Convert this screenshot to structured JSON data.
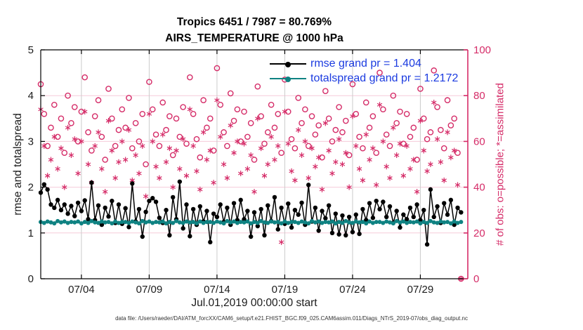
{
  "figure": {
    "title_line1": "Tropics 6451 / 7987 = 80.769%",
    "title_line2": "AIRS_TEMPERATURE @ 1000 hPa",
    "xlabel": "Jul.01,2019 00:00:00 start",
    "ylabel_left": "rmse and totalspread",
    "ylabel_right": "# of obs: o=possible; *=assimilated",
    "data_file_note": "data file: /Users/raeder/DAI/ATM_forcXX/CAM6_setup/f.e21.FHIST_BGC.f09_025.CAM6assim.011/Diags_NTrS_2019-07/obs_diag_output.nc"
  },
  "legend": {
    "text_color": "#1b3be0",
    "items": [
      {
        "label": "rmse grand pr = 1.404",
        "color": "#000000"
      },
      {
        "label": "totalspread grand pr = 1.2172",
        "color": "#0f8282"
      }
    ]
  },
  "colors": {
    "obs_pink": "#d52c68",
    "rmse_black": "#000000",
    "totalspread_teal": "#0f8282",
    "grid_vertical": "#cccccc",
    "grid_horizontal": "#f6cbd9",
    "axis_black": "#000000",
    "tick_label": "#1c1c1c",
    "legend_text_blue": "#1b3be0"
  },
  "chart_data": {
    "type": "line+scatter",
    "title": "Tropics 6451 / 7987 = 80.769% | AIRS_TEMPERATURE @ 1000 hPa",
    "x_unit": "days since Jul.01,2019 00:00:00",
    "x_start_day": 0,
    "x_step_days": 0.25,
    "x_max_day": 31.5,
    "x_ticks": [
      {
        "day": 3,
        "label": "07/04"
      },
      {
        "day": 8,
        "label": "07/09"
      },
      {
        "day": 13,
        "label": "07/14"
      },
      {
        "day": 18,
        "label": "07/19"
      },
      {
        "day": 23,
        "label": "07/24"
      },
      {
        "day": 28,
        "label": "07/29"
      }
    ],
    "y_left": {
      "label": "rmse and totalspread",
      "min": 0,
      "max": 5,
      "ticks": [
        0,
        1,
        2,
        3,
        4,
        5
      ]
    },
    "y_right": {
      "label": "# of obs: o=possible; *=assimilated",
      "min": 0,
      "max": 100,
      "ticks": [
        0,
        20,
        40,
        60,
        80,
        100
      ]
    },
    "grid": true,
    "legend_position": "top-center-inside",
    "series": [
      {
        "name": "rmse",
        "type": "line",
        "axis": "left",
        "marker": "filled-circle",
        "color": "#000000",
        "grand_mean": 1.404,
        "values": [
          1.88,
          2.06,
          1.95,
          1.62,
          1.55,
          1.72,
          1.5,
          1.62,
          1.42,
          1.59,
          1.37,
          1.66,
          1.48,
          1.71,
          1.3,
          2.1,
          1.28,
          1.6,
          1.18,
          1.55,
          1.36,
          1.7,
          1.22,
          1.62,
          1.2,
          1.54,
          1.13,
          2.08,
          1.25,
          1.52,
          0.92,
          1.46,
          1.7,
          1.76,
          1.68,
          1.33,
          1.22,
          1.5,
          0.95,
          1.78,
          1.3,
          2.12,
          1.1,
          1.62,
          0.93,
          1.52,
          1.18,
          1.58,
          1.25,
          1.48,
          0.8,
          1.42,
          1.35,
          1.62,
          1.24,
          1.55,
          1.18,
          1.65,
          1.28,
          1.72,
          1.3,
          1.48,
          0.92,
          1.45,
          1.15,
          1.52,
          0.95,
          1.6,
          1.26,
          1.78,
          1.08,
          1.55,
          1.2,
          1.64,
          1.12,
          1.5,
          1.4,
          1.66,
          1.18,
          2.05,
          1.25,
          1.55,
          1.05,
          1.48,
          1.32,
          1.6,
          1.0,
          1.42,
          0.97,
          1.38,
          0.95,
          1.35,
          1.02,
          1.4,
          0.98,
          1.52,
          1.28,
          1.65,
          1.33,
          1.7,
          1.52,
          1.68,
          1.35,
          1.58,
          1.22,
          1.48,
          1.12,
          1.4,
          1.3,
          1.55,
          1.35,
          1.62,
          1.28,
          1.5,
          0.75,
          1.95,
          1.35,
          1.58,
          1.22,
          1.65,
          1.4,
          1.72,
          1.18,
          1.55,
          1.45
        ]
      },
      {
        "name": "totalspread",
        "type": "line",
        "axis": "left",
        "marker": "filled-circle",
        "color": "#0f8282",
        "grand_mean": 1.2172,
        "values": [
          1.24,
          1.22,
          1.25,
          1.23,
          1.21,
          1.26,
          1.23,
          1.25,
          1.22,
          1.24,
          1.23,
          1.25,
          1.21,
          1.24,
          1.22,
          1.26,
          1.23,
          1.22,
          1.25,
          1.23,
          1.24,
          1.21,
          1.25,
          1.22,
          1.24,
          1.24,
          1.22,
          1.25,
          1.23,
          1.21,
          1.26,
          1.23,
          1.25,
          1.22,
          1.24,
          1.23,
          1.25,
          1.21,
          1.24,
          1.22,
          1.26,
          1.23,
          1.22,
          1.25,
          1.23,
          1.24,
          1.21,
          1.25,
          1.22,
          1.24,
          1.24,
          1.22,
          1.25,
          1.23,
          1.21,
          1.26,
          1.23,
          1.25,
          1.22,
          1.24,
          1.23,
          1.25,
          1.21,
          1.24,
          1.22,
          1.26,
          1.23,
          1.22,
          1.25,
          1.23,
          1.24,
          1.21,
          1.25,
          1.22,
          1.24,
          1.24,
          1.22,
          1.25,
          1.23,
          1.21,
          1.26,
          1.23,
          1.25,
          1.22,
          1.24,
          1.23,
          1.25,
          1.21,
          1.24,
          1.22,
          1.26,
          1.23,
          1.22,
          1.25,
          1.23,
          1.24,
          1.21,
          1.25,
          1.22,
          1.24,
          1.24,
          1.22,
          1.25,
          1.23,
          1.21,
          1.26,
          1.23,
          1.25,
          1.22,
          1.24,
          1.23,
          1.25,
          1.21,
          1.24,
          1.22,
          1.26,
          1.23,
          1.22,
          1.25,
          1.23,
          1.24,
          1.21,
          1.25,
          1.22,
          1.24
        ]
      },
      {
        "name": "possible_obs",
        "type": "scatter",
        "axis": "right",
        "marker": "open-circle",
        "color": "#d52c68",
        "total": 7987,
        "values": [
          85,
          72,
          58,
          66,
          76,
          62,
          70,
          55,
          80,
          68,
          75,
          60,
          73,
          88,
          64,
          56,
          71,
          78,
          62,
          52,
          83,
          70,
          58,
          65,
          74,
          66,
          79,
          57,
          68,
          60,
          72,
          50,
          86,
          74,
          63,
          58,
          77,
          65,
          71,
          54,
          70,
          62,
          75,
          59,
          88,
          72,
          61,
          53,
          78,
          66,
          70,
          56,
          92,
          76,
          64,
          58,
          81,
          69,
          74,
          60,
          73,
          62,
          68,
          52,
          84,
          71,
          59,
          64,
          76,
          66,
          72,
          55,
          87,
          73,
          61,
          57,
          79,
          68,
          74,
          58,
          71,
          63,
          67,
          53,
          82,
          70,
          60,
          65,
          75,
          64,
          69,
          54,
          85,
          72,
          62,
          57,
          77,
          66,
          71,
          55,
          90,
          74,
          63,
          58,
          80,
          68,
          73,
          59,
          72,
          62,
          66,
          52,
          83,
          70,
          61,
          64,
          91,
          75,
          65,
          57,
          78,
          67,
          70,
          55,
          0
        ]
      },
      {
        "name": "assimilated_obs",
        "type": "scatter",
        "axis": "right",
        "marker": "asterisk",
        "color": "#d52c68",
        "total": 6451,
        "values": [
          74,
          58,
          45,
          52,
          62,
          48,
          57,
          40,
          66,
          54,
          61,
          46,
          60,
          73,
          50,
          42,
          58,
          64,
          48,
          38,
          69,
          56,
          44,
          51,
          60,
          52,
          65,
          43,
          54,
          46,
          58,
          36,
          72,
          60,
          49,
          44,
          63,
          51,
          57,
          40,
          56,
          48,
          61,
          45,
          74,
          58,
          47,
          39,
          64,
          52,
          56,
          42,
          78,
          62,
          50,
          44,
          67,
          55,
          60,
          46,
          59,
          48,
          54,
          38,
          70,
          57,
          45,
          50,
          62,
          52,
          58,
          16,
          73,
          59,
          47,
          43,
          65,
          54,
          60,
          44,
          57,
          49,
          53,
          39,
          68,
          56,
          46,
          51,
          61,
          50,
          55,
          40,
          71,
          58,
          48,
          43,
          63,
          52,
          57,
          41,
          76,
          60,
          49,
          44,
          66,
          54,
          59,
          45,
          58,
          48,
          52,
          38,
          69,
          56,
          47,
          50,
          77,
          61,
          51,
          43,
          64,
          53,
          56,
          41,
          0
        ]
      }
    ]
  }
}
